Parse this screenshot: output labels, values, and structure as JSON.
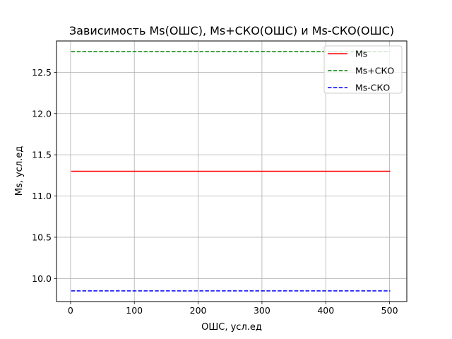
{
  "chart_data": {
    "type": "line",
    "title": "Зависимость Ms(ОШС), Ms+СКО(ОШС) и Ms-СКО(ОШС)",
    "xlabel": "ОШС, усл.ед",
    "ylabel": "Ms, усл.ед",
    "xlim": [
      -22,
      527
    ],
    "ylim": [
      9.72,
      12.88
    ],
    "xticks": [
      0,
      100,
      200,
      300,
      400,
      500
    ],
    "xtick_labels": [
      "0",
      "100",
      "200",
      "300",
      "400",
      "500"
    ],
    "yticks": [
      10.0,
      10.5,
      11.0,
      11.5,
      12.0,
      12.5
    ],
    "ytick_labels": [
      "10.0",
      "10.5",
      "11.0",
      "11.5",
      "12.0",
      "12.5"
    ],
    "grid": true,
    "legend_position": "top-right",
    "series": [
      {
        "name": "Ms",
        "color": "#ff0000",
        "style": "solid",
        "x": [
          1,
          501
        ],
        "y": [
          11.3,
          11.3
        ]
      },
      {
        "name": "Ms+СКО",
        "color": "#008000",
        "style": "dashed",
        "x": [
          1,
          501
        ],
        "y": [
          12.75,
          12.75
        ]
      },
      {
        "name": "Ms-СКО",
        "color": "#0000ff",
        "style": "dashed",
        "x": [
          1,
          501
        ],
        "y": [
          9.85,
          9.85
        ]
      }
    ]
  }
}
